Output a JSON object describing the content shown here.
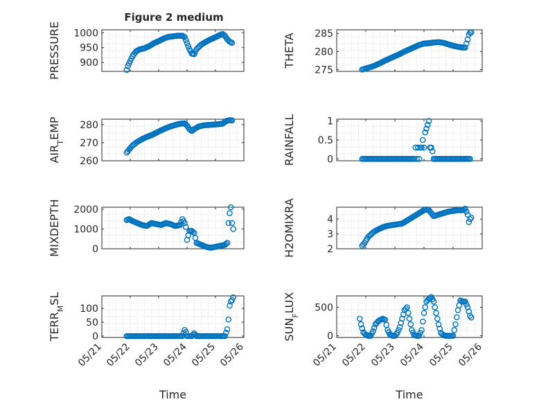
{
  "figure": {
    "title": "Figure 2 medium"
  },
  "colors": {
    "marker": "#0072bd",
    "axis": "#262626",
    "grid": "#d0d0d0"
  },
  "chart_data": [
    {
      "id": "pressure",
      "type": "scatter",
      "title": "Figure 2 medium",
      "xlabel": "",
      "ylabel": "PRESSURE",
      "xlim": [
        "2014-05-21",
        "2014-05-26"
      ],
      "ylim": [
        870,
        1010
      ],
      "yticks": [
        900,
        950,
        1000
      ],
      "xticks": [],
      "xgrid": true,
      "ygrid": true,
      "x": [
        "2014-05-21T21:00",
        "2014-05-21T22:00",
        "2014-05-22T00:00",
        "2014-05-22T02:00",
        "2014-05-22T05:00",
        "2014-05-22T08:00",
        "2014-05-22T12:00",
        "2014-05-22T16:00",
        "2014-05-22T20:00",
        "2014-05-23T00:00",
        "2014-05-23T04:00",
        "2014-05-23T08:00",
        "2014-05-23T12:00",
        "2014-05-23T16:00",
        "2014-05-23T20:00",
        "2014-05-23T22:00",
        "2014-05-24T00:00",
        "2014-05-24T02:00",
        "2014-05-24T04:00",
        "2014-05-24T06:00",
        "2014-05-24T08:00",
        "2014-05-24T12:00",
        "2014-05-24T16:00",
        "2014-05-24T20:00",
        "2014-05-25T00:00",
        "2014-05-25T04:00",
        "2014-05-25T06:00",
        "2014-05-25T08:00",
        "2014-05-25T10:00",
        "2014-05-25T12:00",
        "2014-05-25T14:00"
      ],
      "y": [
        875,
        888,
        905,
        922,
        938,
        944,
        948,
        955,
        965,
        972,
        980,
        986,
        988,
        990,
        990,
        985,
        965,
        945,
        930,
        928,
        945,
        960,
        970,
        978,
        985,
        993,
        996,
        990,
        978,
        970,
        966
      ]
    },
    {
      "id": "theta",
      "type": "scatter",
      "xlabel": "",
      "ylabel": "THETA",
      "xlim": [
        "2014-05-21",
        "2014-05-26"
      ],
      "ylim": [
        274.5,
        286
      ],
      "yticks": [
        275,
        280,
        285
      ],
      "xticks": [],
      "xgrid": true,
      "ygrid": true,
      "x": [
        "2014-05-21T21:00",
        "2014-05-22T00:00",
        "2014-05-22T04:00",
        "2014-05-22T08:00",
        "2014-05-22T12:00",
        "2014-05-22T16:00",
        "2014-05-22T20:00",
        "2014-05-23T00:00",
        "2014-05-23T04:00",
        "2014-05-23T08:00",
        "2014-05-23T12:00",
        "2014-05-23T16:00",
        "2014-05-23T20:00",
        "2014-05-24T00:00",
        "2014-05-24T04:00",
        "2014-05-24T08:00",
        "2014-05-24T12:00",
        "2014-05-24T16:00",
        "2014-05-24T20:00",
        "2014-05-25T00:00",
        "2014-05-25T04:00",
        "2014-05-25T08:00",
        "2014-05-25T10:00",
        "2014-05-25T12:00",
        "2014-05-25T13:00",
        "2014-05-25T14:00",
        "2014-05-25T15:00"
      ],
      "y": [
        275,
        275.3,
        275.7,
        276.2,
        276.8,
        277.5,
        278.1,
        278.7,
        279.3,
        280,
        280.6,
        281.2,
        281.8,
        282.2,
        282.3,
        282.5,
        282.6,
        282.4,
        282,
        281.6,
        281.3,
        281.1,
        281.1,
        283.3,
        284.7,
        285.2,
        285.3
      ]
    },
    {
      "id": "airtemp",
      "type": "scatter",
      "xlabel": "",
      "ylabel": "AIR_TEMP",
      "xlim": [
        "2014-05-21",
        "2014-05-26"
      ],
      "ylim": [
        260,
        283
      ],
      "yticks": [
        260,
        270,
        280
      ],
      "xticks": [],
      "xgrid": true,
      "ygrid": true,
      "x": [
        "2014-05-21T21:00",
        "2014-05-21T23:00",
        "2014-05-22T02:00",
        "2014-05-22T06:00",
        "2014-05-22T10:00",
        "2014-05-22T14:00",
        "2014-05-22T18:00",
        "2014-05-22T22:00",
        "2014-05-23T02:00",
        "2014-05-23T06:00",
        "2014-05-23T10:00",
        "2014-05-23T14:00",
        "2014-05-23T18:00",
        "2014-05-23T22:00",
        "2014-05-24T00:00",
        "2014-05-24T02:00",
        "2014-05-24T04:00",
        "2014-05-24T06:00",
        "2014-05-24T10:00",
        "2014-05-24T14:00",
        "2014-05-24T18:00",
        "2014-05-24T22:00",
        "2014-05-25T02:00",
        "2014-05-25T06:00",
        "2014-05-25T09:00",
        "2014-05-25T12:00",
        "2014-05-25T14:00"
      ],
      "y": [
        264.5,
        266.2,
        268.5,
        270.5,
        272,
        273.2,
        274.2,
        275.5,
        276.8,
        278,
        279,
        279.8,
        280.5,
        280.7,
        279.5,
        277.5,
        276.5,
        277.5,
        279,
        279.6,
        279.8,
        280,
        280.2,
        280.5,
        282,
        282.5,
        282.3
      ]
    },
    {
      "id": "rainfall",
      "type": "scatter",
      "xlabel": "",
      "ylabel": "RAINFALL",
      "xlim": [
        "2014-05-21",
        "2014-05-26"
      ],
      "ylim": [
        -0.05,
        1.05
      ],
      "yticks": [
        0,
        0.5,
        1
      ],
      "xticks": [],
      "xgrid": true,
      "ygrid": true,
      "x": [
        "2014-05-21T21:00",
        "2014-05-22T00:00",
        "2014-05-22T03:00",
        "2014-05-22T06:00",
        "2014-05-22T09:00",
        "2014-05-22T12:00",
        "2014-05-22T15:00",
        "2014-05-22T18:00",
        "2014-05-22T21:00",
        "2014-05-23T00:00",
        "2014-05-23T03:00",
        "2014-05-23T06:00",
        "2014-05-23T09:00",
        "2014-05-23T12:00",
        "2014-05-23T14:00",
        "2014-05-23T16:00",
        "2014-05-23T17:00",
        "2014-05-23T18:00",
        "2014-05-23T19:00",
        "2014-05-23T20:00",
        "2014-05-23T21:00",
        "2014-05-23T22:00",
        "2014-05-23T23:00",
        "2014-05-24T00:00",
        "2014-05-24T01:00",
        "2014-05-24T02:00",
        "2014-05-24T03:00",
        "2014-05-24T04:00",
        "2014-05-24T05:00",
        "2014-05-24T06:00",
        "2014-05-24T07:00",
        "2014-05-24T08:00",
        "2014-05-24T09:00",
        "2014-05-24T12:00",
        "2014-05-24T15:00",
        "2014-05-24T18:00",
        "2014-05-24T21:00",
        "2014-05-25T00:00",
        "2014-05-25T03:00",
        "2014-05-25T06:00",
        "2014-05-25T09:00",
        "2014-05-25T12:00",
        "2014-05-25T14:00"
      ],
      "y": [
        0,
        0,
        0,
        0,
        0,
        0,
        0,
        0,
        0,
        0,
        0,
        0,
        0,
        0,
        0,
        0,
        0.3,
        0,
        0.3,
        0,
        0.3,
        0.3,
        0.5,
        0.3,
        0.7,
        0.8,
        0.9,
        1.0,
        0.3,
        0.3,
        0.2,
        0,
        0,
        0,
        0,
        0,
        0,
        0,
        0,
        0,
        0,
        0,
        0
      ]
    },
    {
      "id": "mixdepth",
      "type": "scatter",
      "xlabel": "",
      "ylabel": "MIXDEPTH",
      "xlim": [
        "2014-05-21",
        "2014-05-26"
      ],
      "ylim": [
        0,
        2100
      ],
      "yticks": [
        0,
        1000,
        2000
      ],
      "xticks": [],
      "xgrid": true,
      "ygrid": true,
      "x": [
        "2014-05-21T21:00",
        "2014-05-21T23:00",
        "2014-05-22T02:00",
        "2014-05-22T06:00",
        "2014-05-22T10:00",
        "2014-05-22T14:00",
        "2014-05-22T18:00",
        "2014-05-22T22:00",
        "2014-05-23T02:00",
        "2014-05-23T06:00",
        "2014-05-23T10:00",
        "2014-05-23T14:00",
        "2014-05-23T18:00",
        "2014-05-23T20:00",
        "2014-05-23T22:00",
        "2014-05-23T23:00",
        "2014-05-24T00:00",
        "2014-05-24T02:00",
        "2014-05-24T04:00",
        "2014-05-24T06:00",
        "2014-05-24T08:00",
        "2014-05-24T12:00",
        "2014-05-24T16:00",
        "2014-05-24T20:00",
        "2014-05-25T00:00",
        "2014-05-25T04:00",
        "2014-05-25T08:00",
        "2014-05-25T10:00",
        "2014-05-25T11:00",
        "2014-05-25T12:00",
        "2014-05-25T13:00",
        "2014-05-25T14:00",
        "2014-05-25T15:00"
      ],
      "y": [
        1450,
        1500,
        1400,
        1300,
        1200,
        1150,
        1300,
        1250,
        1200,
        1300,
        1250,
        1150,
        1200,
        1500,
        1300,
        1100,
        450,
        900,
        900,
        800,
        300,
        200,
        100,
        50,
        100,
        150,
        200,
        300,
        1300,
        1800,
        2100,
        1300,
        1000
      ]
    },
    {
      "id": "h2omixra",
      "type": "scatter",
      "xlabel": "",
      "ylabel": "H2OMIXRA",
      "xlim": [
        "2014-05-21",
        "2014-05-26"
      ],
      "ylim": [
        2,
        4.8
      ],
      "yticks": [
        2,
        3,
        4
      ],
      "xticks": [],
      "xgrid": true,
      "ygrid": true,
      "x": [
        "2014-05-21T21:00",
        "2014-05-21T23:00",
        "2014-05-22T02:00",
        "2014-05-22T06:00",
        "2014-05-22T10:00",
        "2014-05-22T14:00",
        "2014-05-22T18:00",
        "2014-05-22T22:00",
        "2014-05-23T02:00",
        "2014-05-23T06:00",
        "2014-05-23T10:00",
        "2014-05-23T14:00",
        "2014-05-23T18:00",
        "2014-05-23T22:00",
        "2014-05-24T00:00",
        "2014-05-24T02:00",
        "2014-05-24T04:00",
        "2014-05-24T06:00",
        "2014-05-24T08:00",
        "2014-05-24T12:00",
        "2014-05-24T16:00",
        "2014-05-24T20:00",
        "2014-05-25T00:00",
        "2014-05-25T04:00",
        "2014-05-25T08:00",
        "2014-05-25T10:00",
        "2014-05-25T12:00",
        "2014-05-25T13:00",
        "2014-05-25T14:00",
        "2014-05-25T15:00"
      ],
      "y": [
        2.2,
        2.4,
        2.8,
        3.1,
        3.3,
        3.45,
        3.55,
        3.6,
        3.65,
        3.7,
        3.9,
        4.1,
        4.3,
        4.5,
        4.6,
        4.65,
        4.6,
        4.4,
        4.2,
        4.3,
        4.4,
        4.5,
        4.55,
        4.6,
        4.6,
        4.7,
        4.3,
        3.8,
        4.0,
        4.1
      ]
    },
    {
      "id": "terrmsl",
      "type": "scatter",
      "xlabel": "Time",
      "ylabel": "TERR_MSL",
      "xlim": [
        "2014-05-21",
        "2014-05-26"
      ],
      "ylim": [
        -5,
        145
      ],
      "yticks": [
        0,
        50,
        100
      ],
      "xticks": [
        "05/21",
        "05/22",
        "05/23",
        "05/24",
        "05/25",
        "05/26"
      ],
      "xgrid": true,
      "ygrid": true,
      "x": [
        "2014-05-21T21:00",
        "2014-05-22T00:00",
        "2014-05-22T04:00",
        "2014-05-22T08:00",
        "2014-05-22T12:00",
        "2014-05-22T16:00",
        "2014-05-22T20:00",
        "2014-05-23T00:00",
        "2014-05-23T04:00",
        "2014-05-23T08:00",
        "2014-05-23T12:00",
        "2014-05-23T16:00",
        "2014-05-23T20:00",
        "2014-05-23T22:00",
        "2014-05-23T23:00",
        "2014-05-24T00:00",
        "2014-05-24T04:00",
        "2014-05-24T06:00",
        "2014-05-24T08:00",
        "2014-05-24T12:00",
        "2014-05-24T16:00",
        "2014-05-24T20:00",
        "2014-05-25T00:00",
        "2014-05-25T04:00",
        "2014-05-25T08:00",
        "2014-05-25T10:00",
        "2014-05-25T11:00",
        "2014-05-25T12:00",
        "2014-05-25T13:00",
        "2014-05-25T14:00",
        "2014-05-25T15:00"
      ],
      "y": [
        0,
        0,
        0,
        0,
        0,
        0,
        0,
        0,
        0,
        0,
        0,
        0,
        0,
        22,
        15,
        0,
        0,
        10,
        0,
        0,
        0,
        0,
        0,
        0,
        0,
        25,
        60,
        110,
        125,
        130,
        140
      ]
    },
    {
      "id": "sunflux",
      "type": "scatter",
      "xlabel": "Time",
      "ylabel": "SUN_FLUX",
      "xlim": [
        "2014-05-21",
        "2014-05-26"
      ],
      "ylim": [
        -30,
        700
      ],
      "yticks": [
        0,
        500
      ],
      "xticks": [
        "05/21",
        "05/22",
        "05/23",
        "05/24",
        "05/25",
        "05/26"
      ],
      "xgrid": true,
      "ygrid": true,
      "x": [
        "2014-05-21T19:00",
        "2014-05-21T20:00",
        "2014-05-21T22:00",
        "2014-05-22T00:00",
        "2014-05-22T02:00",
        "2014-05-22T04:00",
        "2014-05-22T06:00",
        "2014-05-22T08:00",
        "2014-05-22T10:00",
        "2014-05-22T12:00",
        "2014-05-22T14:00",
        "2014-05-22T16:00",
        "2014-05-22T18:00",
        "2014-05-22T20:00",
        "2014-05-22T22:00",
        "2014-05-23T00:00",
        "2014-05-23T02:00",
        "2014-05-23T04:00",
        "2014-05-23T06:00",
        "2014-05-23T08:00",
        "2014-05-23T10:00",
        "2014-05-23T12:00",
        "2014-05-23T14:00",
        "2014-05-23T16:00",
        "2014-05-23T18:00",
        "2014-05-23T20:00",
        "2014-05-23T22:00",
        "2014-05-24T00:00",
        "2014-05-24T02:00",
        "2014-05-24T04:00",
        "2014-05-24T06:00",
        "2014-05-24T08:00",
        "2014-05-24T10:00",
        "2014-05-24T12:00",
        "2014-05-24T14:00",
        "2014-05-24T16:00",
        "2014-05-24T18:00",
        "2014-05-24T20:00",
        "2014-05-24T22:00",
        "2014-05-25T00:00",
        "2014-05-25T02:00",
        "2014-05-25T04:00",
        "2014-05-25T06:00",
        "2014-05-25T08:00",
        "2014-05-25T10:00",
        "2014-05-25T12:00",
        "2014-05-25T14:00",
        "2014-05-25T15:00"
      ],
      "y": [
        300,
        200,
        60,
        20,
        0,
        0,
        80,
        200,
        250,
        280,
        300,
        280,
        100,
        20,
        0,
        0,
        50,
        150,
        300,
        450,
        500,
        300,
        100,
        10,
        0,
        0,
        100,
        400,
        600,
        650,
        680,
        600,
        400,
        200,
        50,
        10,
        0,
        0,
        0,
        0,
        200,
        450,
        620,
        600,
        600,
        500,
        350,
        320
      ]
    }
  ]
}
